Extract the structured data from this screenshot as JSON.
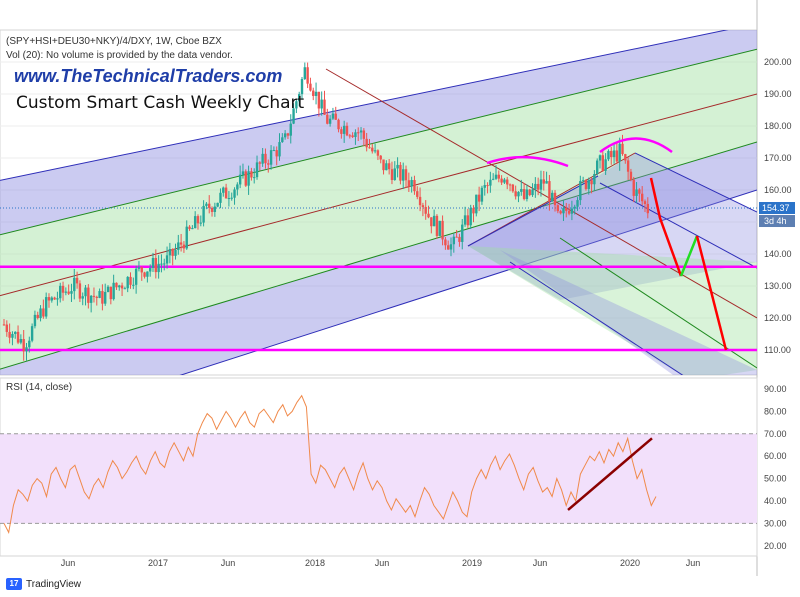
{
  "header": {
    "symbol_line": "(SPY+HSI+DEU30+NKY)/4/DXY, 1W, Cboe BZX",
    "volume_note": "Vol (20): No volume is provided by the data vendor.",
    "site": "www.TheTechnicalTraders.com",
    "subtitle": "Custom Smart Cash Weekly Chart"
  },
  "rsi_label": "RSI (14, close)",
  "branding": {
    "name": "TradingView",
    "icon": "tradingview-logo-icon"
  },
  "colors": {
    "bull": "#26a69a",
    "bear": "#ef5350",
    "magenta": "#ff00ff",
    "channel_blue": "#2e2eb8",
    "channel_green": "#1f8a1f",
    "trend_red": "#a52a2a",
    "rsi_line": "#f08a4b",
    "rsi_band": "#f2e0fb",
    "price_tag": "#2a73c9"
  },
  "chart_data": [
    {
      "type": "candlestick",
      "y_ticks": [
        "200.00",
        "190.00",
        "180.00",
        "170.00",
        "160.00",
        "150.00",
        "140.00",
        "130.00",
        "120.00",
        "110.00"
      ],
      "x_ticks": [
        "Jun",
        "2017",
        "Jun",
        "2018",
        "Jun",
        "2019",
        "Jun",
        "2020",
        "Jun"
      ],
      "ylim": [
        100,
        206
      ],
      "last_price": "154.37",
      "countdown": "3d 4h",
      "annotations": [
        "rising pitchfork channel",
        "descending pitchfork channel",
        "head-and-shoulders arcs",
        "horizontal support 136",
        "horizontal support 110",
        "projected decline arrows"
      ],
      "grid": true
    },
    {
      "type": "line",
      "title": "RSI (14, close)",
      "y_ticks": [
        "90.00",
        "80.00",
        "70.00",
        "60.00",
        "50.00",
        "40.00",
        "30.00",
        "20.00"
      ],
      "ylim": [
        17,
        93
      ],
      "band": [
        30,
        70
      ],
      "values": [
        30,
        26,
        38,
        45,
        43,
        40,
        47,
        50,
        48,
        42,
        52,
        55,
        50,
        46,
        54,
        56,
        50,
        44,
        41,
        47,
        50,
        46,
        53,
        58,
        55,
        50,
        53,
        57,
        60,
        55,
        52,
        58,
        62,
        57,
        55,
        62,
        66,
        62,
        58,
        64,
        60,
        70,
        75,
        79,
        77,
        72,
        76,
        80,
        77,
        73,
        77,
        80,
        75,
        73,
        79,
        81,
        78,
        75,
        80,
        83,
        78,
        80,
        84,
        87,
        82,
        52,
        48,
        56,
        54,
        50,
        46,
        52,
        55,
        50,
        45,
        52,
        57,
        50,
        45,
        49,
        46,
        40,
        36,
        41,
        38,
        35,
        38,
        33,
        40,
        46,
        43,
        38,
        35,
        32,
        38,
        44,
        40,
        35,
        33,
        44,
        50,
        54,
        50,
        56,
        60,
        54,
        58,
        61,
        56,
        50,
        45,
        52,
        55,
        49,
        44,
        46,
        42,
        50,
        45,
        38,
        44,
        40,
        52,
        56,
        60,
        58,
        62,
        57,
        63,
        60,
        66,
        62,
        68,
        58,
        50,
        54,
        45,
        38,
        42
      ]
    }
  ]
}
